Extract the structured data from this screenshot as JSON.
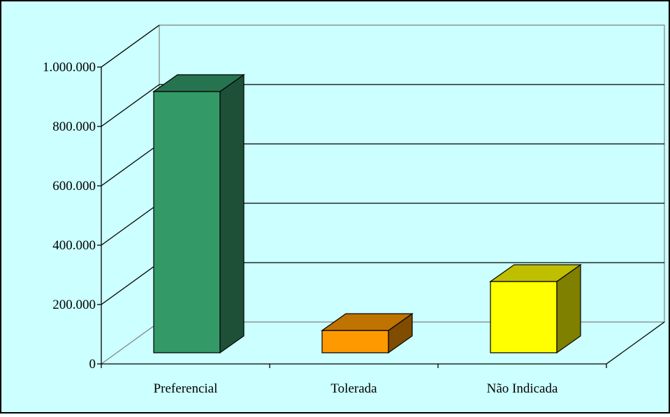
{
  "chart_data": {
    "type": "bar",
    "three_d": true,
    "categories": [
      "Preferencial",
      "Tolerada",
      "Não Indicada"
    ],
    "values": [
      880000,
      75000,
      240000
    ],
    "ylim": [
      0,
      1000000
    ],
    "y_ticks": [
      0,
      200000,
      400000,
      600000,
      800000,
      1000000
    ],
    "y_tick_labels": [
      "0",
      "200.000",
      "400.000",
      "600.000",
      "800.000",
      "1.000.000"
    ],
    "grid": true,
    "legend": "none",
    "colors": {
      "background": "#ccffff",
      "bars": [
        {
          "front": "#339966",
          "side": "#1e5038",
          "top": "#267350"
        },
        {
          "front": "#ff9900",
          "side": "#7f4c00",
          "top": "#bf7300"
        },
        {
          "front": "#ffff00",
          "side": "#7f7f00",
          "top": "#bfbf00"
        }
      ]
    }
  }
}
